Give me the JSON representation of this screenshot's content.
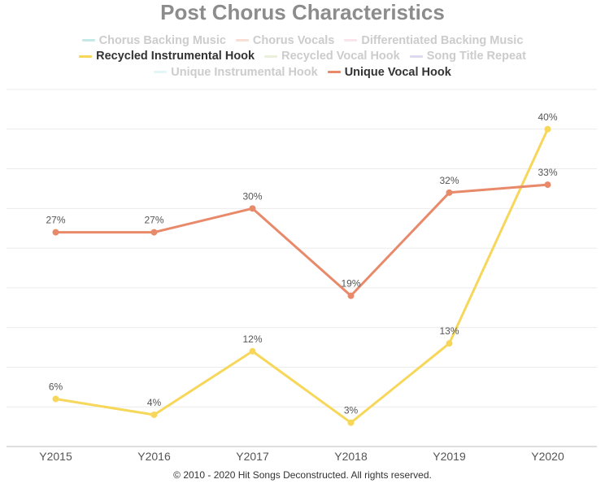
{
  "chart_data": {
    "type": "line",
    "title": "Post Chorus Characteristics",
    "categories": [
      "Y2015",
      "Y2016",
      "Y2017",
      "Y2018",
      "Y2019",
      "Y2020"
    ],
    "ylim": [
      0,
      45
    ],
    "grid": true,
    "legend_placement": "top",
    "legend": [
      [
        {
          "name": "Chorus Backing Music",
          "color": "#7fcfcf",
          "visible": false
        },
        {
          "name": "Chorus Vocals",
          "color": "#f2b5a5",
          "visible": false
        },
        {
          "name": "Differentiated Backing Music",
          "color": "#f5c6da",
          "visible": false
        }
      ],
      [
        {
          "name": "Recycled Instrumental Hook",
          "color": "#f7d75a",
          "visible": true
        },
        {
          "name": "Recycled Vocal Hook",
          "color": "#cfe0b0",
          "visible": false
        },
        {
          "name": "Song Title Repeat",
          "color": "#b6a9d9",
          "visible": false
        }
      ],
      [
        {
          "name": "Unique Instrumental Hook",
          "color": "#bfe8ee",
          "visible": false
        },
        {
          "name": "Unique Vocal Hook",
          "color": "#e8896a",
          "visible": true
        }
      ]
    ],
    "series": [
      {
        "name": "Recycled Instrumental Hook",
        "color": "#f7d75a",
        "values": [
          6,
          4,
          12,
          3,
          13,
          40
        ],
        "labels": [
          "6%",
          "4%",
          "12%",
          "3%",
          "13%",
          "40%"
        ]
      },
      {
        "name": "Unique Vocal Hook",
        "color": "#e8896a",
        "values": [
          27,
          27,
          30,
          19,
          32,
          33
        ],
        "labels": [
          "27%",
          "27%",
          "30%",
          "19%",
          "32%",
          "33%"
        ]
      }
    ]
  },
  "footer": "© 2010 - 2020 Hit Songs Deconstructed. All rights reserved."
}
